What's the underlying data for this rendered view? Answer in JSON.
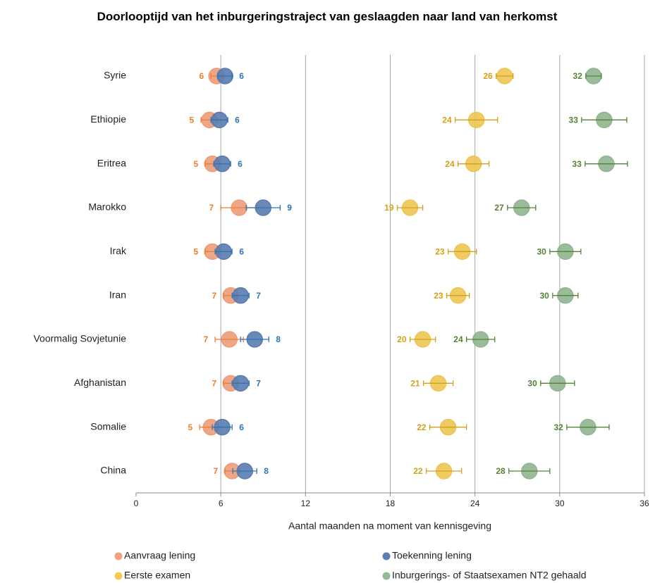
{
  "chart_data": {
    "type": "dot_errorbar",
    "title": "Doorlooptijd van het inburgeringstraject van geslaagden naar land van herkomst",
    "x_label": "Aantal maanden  na moment  van kennisgeving",
    "categories": [
      "Syrie",
      "Ethiopie",
      "Eritrea",
      "Marokko",
      "Irak",
      "Iran",
      "Voormalig Sovjetunie",
      "Afghanistan",
      "Somalie",
      "China"
    ],
    "xlim": [
      0,
      36
    ],
    "xticks": [
      0,
      6,
      12,
      18,
      24,
      30,
      36
    ],
    "grid": true,
    "series": [
      {
        "name": "Aanvraag lening",
        "color": "#f4a27c",
        "label_color": "#ed7d31",
        "values": [
          5.7,
          5.2,
          5.4,
          7.3,
          5.4,
          6.7,
          6.6,
          6.7,
          5.3,
          6.8
        ],
        "errors": [
          0.4,
          0.6,
          0.5,
          1.3,
          0.5,
          0.5,
          1.0,
          0.5,
          0.8,
          0.5
        ],
        "value_labels": [
          "6",
          "5",
          "5",
          "7",
          "5",
          "7",
          "7",
          "7",
          "5",
          "7"
        ]
      },
      {
        "name": "Toekenning lening",
        "color": "#5b7fb5",
        "label_color": "#2e75b6",
        "values": [
          6.3,
          5.9,
          6.1,
          9.0,
          6.2,
          7.4,
          8.4,
          7.4,
          6.1,
          7.7
        ],
        "errors": [
          0.5,
          0.6,
          0.6,
          1.2,
          0.6,
          0.6,
          1.0,
          0.6,
          0.7,
          0.85
        ],
        "value_labels": [
          "6",
          "6",
          "6",
          "9",
          "6",
          "7",
          "8",
          "7",
          "6",
          "8"
        ]
      },
      {
        "name": "Eerste examen",
        "color": "#f5cb55",
        "label_color": "#d4a017",
        "values": [
          26.1,
          24.1,
          23.9,
          19.4,
          23.1,
          22.8,
          20.3,
          21.4,
          22.1,
          21.8
        ],
        "errors": [
          0.6,
          1.5,
          1.1,
          0.9,
          1.0,
          0.8,
          0.9,
          1.05,
          1.3,
          1.25
        ],
        "value_labels": [
          "26",
          "24",
          "24",
          "19",
          "23",
          "23",
          "20",
          "21",
          "22",
          "22"
        ]
      },
      {
        "name": "Inburgerings- of Staatsexamen NT2 gehaald",
        "color": "#93ba93",
        "label_color": "#548235",
        "values": [
          32.4,
          33.15,
          33.3,
          27.3,
          30.4,
          30.4,
          24.4,
          29.85,
          32.0,
          27.85
        ],
        "errors": [
          0.55,
          1.6,
          1.5,
          1.0,
          1.1,
          0.9,
          1.0,
          1.2,
          1.5,
          1.45
        ],
        "value_labels": [
          "32",
          "33",
          "33",
          "27",
          "30",
          "30",
          "24",
          "30",
          "32",
          "28"
        ]
      }
    ]
  }
}
